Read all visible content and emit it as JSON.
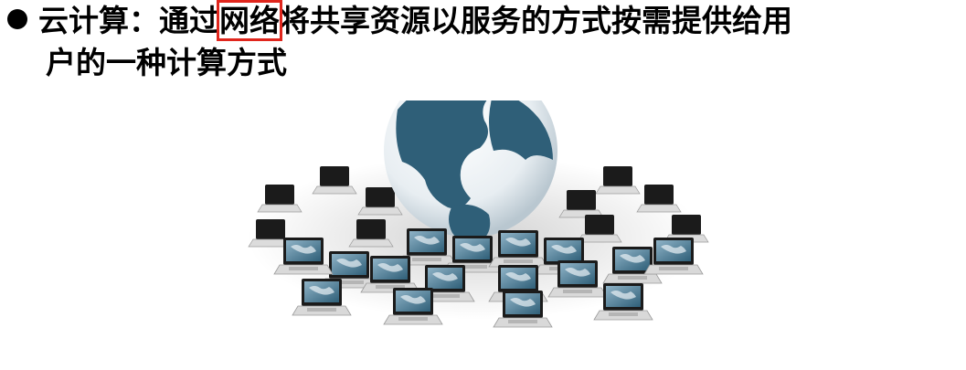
{
  "slide": {
    "definition": {
      "part1": "云计算：通过",
      "highlight": "网络",
      "part2": "将共享资源以服务的方式按需提供给用",
      "part3": "户的一种计算方式"
    },
    "colors": {
      "highlight_box": "#e0261d",
      "globe_ocean": "#2f5f78",
      "globe_land": "#ffffff"
    },
    "illustration": {
      "icon": "globe-with-laptops-icon"
    }
  }
}
